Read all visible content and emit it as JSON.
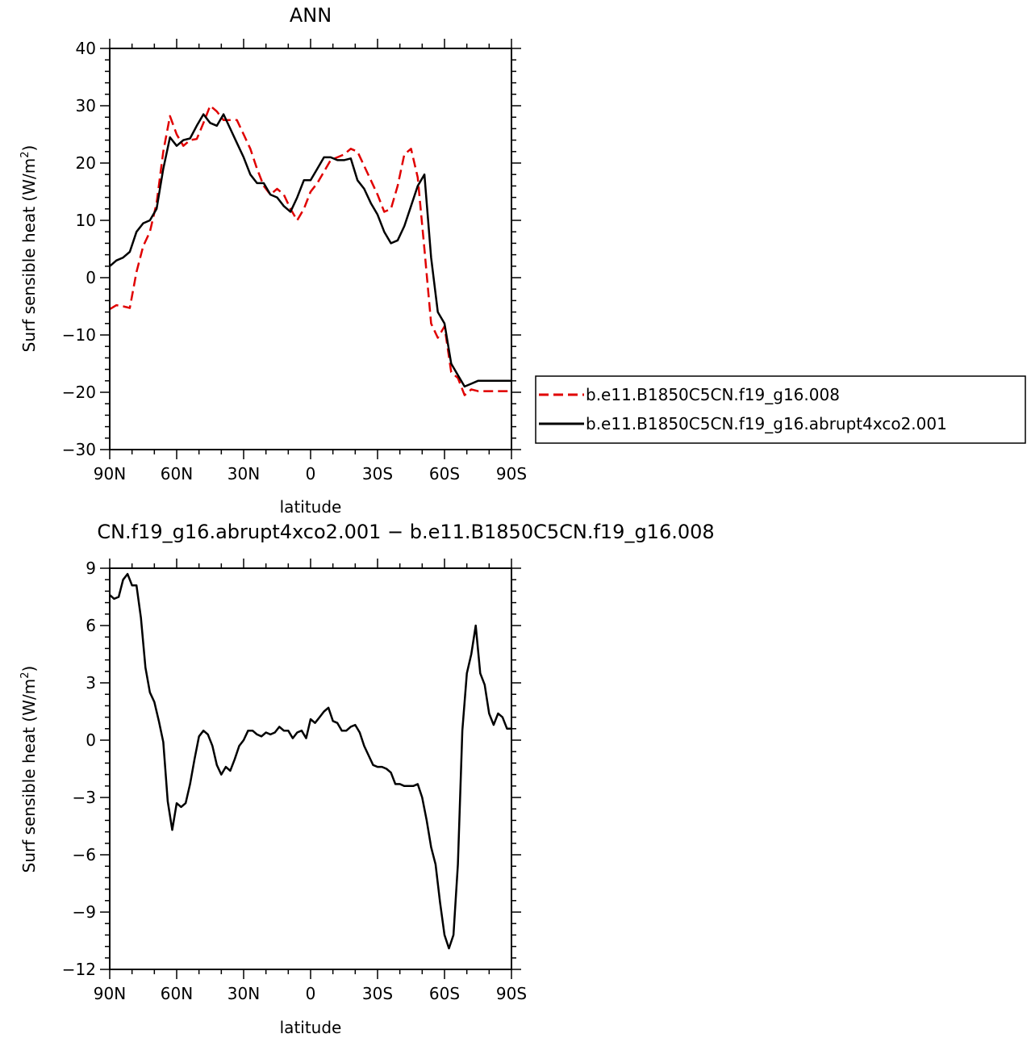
{
  "chart_data": [
    {
      "type": "line",
      "title": "ANN",
      "xlabel": "latitude",
      "ylabel": "Surf sensible heat (W/m",
      "ylabel_sup": "2",
      "ylabel_end": ")",
      "xlim": [
        90,
        -90
      ],
      "ylim": [
        -30,
        40
      ],
      "xticks": [
        90,
        60,
        30,
        0,
        -30,
        -60,
        -90
      ],
      "xtick_labels": [
        "90N",
        "60N",
        "30N",
        "0",
        "30S",
        "60S",
        "90S"
      ],
      "yticks": [
        -30,
        -20,
        -10,
        0,
        10,
        20,
        30,
        40
      ],
      "ytick_labels": [
        "−30",
        "−20",
        "−10",
        "0",
        "10",
        "20",
        "30",
        "40"
      ],
      "legend_position": "right",
      "series": [
        {
          "name": "b.e11.B1850C5CN.f19_g16.008",
          "color": "#e00000",
          "dash": "dashed",
          "x": [
            90,
            87,
            84,
            81,
            78,
            75,
            72,
            69,
            66,
            63,
            60,
            57,
            54,
            51,
            48,
            45,
            42,
            39,
            36,
            33,
            30,
            27,
            24,
            21,
            18,
            15,
            12,
            9,
            6,
            3,
            0,
            -3,
            -6,
            -9,
            -12,
            -15,
            -18,
            -21,
            -24,
            -27,
            -30,
            -33,
            -36,
            -39,
            -42,
            -45,
            -48,
            -51,
            -54,
            -57,
            -60,
            -63,
            -66,
            -69,
            -72,
            -75,
            -78,
            -81,
            -84,
            -87,
            -90
          ],
          "y": [
            -5.5,
            -4.8,
            -5,
            -5.3,
            1,
            5.5,
            8,
            13,
            22,
            28.2,
            25,
            23,
            24,
            24.2,
            27,
            30,
            29,
            27.5,
            27.5,
            27.5,
            25,
            22.5,
            19,
            16,
            14.5,
            15.5,
            14.5,
            12,
            10,
            12,
            15,
            16.5,
            18.5,
            20.5,
            21,
            21.5,
            22.5,
            22,
            19.5,
            17,
            14.5,
            11.5,
            12,
            16,
            21.5,
            22.5,
            17.5,
            5,
            -8,
            -10.5,
            -8.5,
            -16.5,
            -17.5,
            -20.5,
            -19.5,
            -19.8,
            -19.8,
            -19.8,
            -19.8,
            -19.8,
            -19.8
          ]
        },
        {
          "name": "b.e11.B1850C5CN.f19_g16.abrupt4xco2.001",
          "color": "#000000",
          "dash": "solid",
          "x": [
            90,
            87,
            84,
            81,
            78,
            75,
            72,
            69,
            66,
            63,
            60,
            57,
            54,
            51,
            48,
            45,
            42,
            39,
            36,
            33,
            30,
            27,
            24,
            21,
            18,
            15,
            12,
            9,
            6,
            3,
            0,
            -3,
            -6,
            -9,
            -12,
            -15,
            -18,
            -21,
            -24,
            -27,
            -30,
            -33,
            -36,
            -39,
            -42,
            -45,
            -48,
            -51,
            -54,
            -57,
            -60,
            -63,
            -66,
            -69,
            -72,
            -75,
            -78,
            -81,
            -84,
            -87,
            -90
          ],
          "y": [
            2,
            3,
            3.5,
            4.5,
            8,
            9.5,
            10,
            12,
            19,
            24.5,
            23,
            24,
            24.3,
            26.5,
            28.5,
            27,
            26.5,
            28.5,
            26,
            23.5,
            21,
            18,
            16.5,
            16.5,
            14.5,
            14,
            12.5,
            11.5,
            14,
            17,
            17,
            19,
            21,
            21,
            20.5,
            20.5,
            20.8,
            17,
            15.5,
            13,
            11,
            8,
            6,
            6.5,
            9,
            12.5,
            16,
            18,
            3.5,
            -6,
            -8,
            -15,
            -17,
            -19,
            -18.5,
            -18,
            -18,
            -18,
            -18,
            -18,
            -18
          ]
        }
      ]
    },
    {
      "type": "line",
      "title": "CN.f19_g16.abrupt4xco2.001 − b.e11.B1850C5CN.f19_g16.008",
      "xlabel": "latitude",
      "ylabel": "Surf sensible heat (W/m",
      "ylabel_sup": "2",
      "ylabel_end": ")",
      "xlim": [
        90,
        -90
      ],
      "ylim": [
        -12,
        9
      ],
      "xticks": [
        90,
        60,
        30,
        0,
        -30,
        -60,
        -90
      ],
      "xtick_labels": [
        "90N",
        "60N",
        "30N",
        "0",
        "30S",
        "60S",
        "90S"
      ],
      "yticks": [
        -12,
        -9,
        -6,
        -3,
        0,
        3,
        6,
        9
      ],
      "ytick_labels": [
        "−12",
        "−9",
        "−6",
        "−3",
        "0",
        "3",
        "6",
        "9"
      ],
      "series": [
        {
          "color": "#000000",
          "dash": "solid",
          "x": [
            90,
            88,
            86,
            84,
            82,
            80,
            78,
            76,
            74,
            72,
            70,
            68,
            66,
            64,
            62,
            60,
            58,
            56,
            54,
            52,
            50,
            48,
            46,
            44,
            42,
            40,
            38,
            36,
            34,
            32,
            30,
            28,
            26,
            24,
            22,
            20,
            18,
            16,
            14,
            12,
            10,
            8,
            6,
            4,
            2,
            0,
            -2,
            -4,
            -6,
            -8,
            -10,
            -12,
            -14,
            -16,
            -18,
            -20,
            -22,
            -24,
            -26,
            -28,
            -30,
            -32,
            -34,
            -36,
            -38,
            -40,
            -42,
            -44,
            -46,
            -48,
            -50,
            -52,
            -54,
            -56,
            -58,
            -60,
            -62,
            -64,
            -66,
            -68,
            -70,
            -72,
            -74,
            -76,
            -78,
            -80,
            -82,
            -84,
            -86,
            -88,
            -90
          ],
          "y": [
            7.6,
            7.4,
            7.5,
            8.4,
            8.7,
            8.1,
            8.1,
            6.4,
            3.8,
            2.5,
            2,
            1,
            -0.1,
            -3.2,
            -4.7,
            -3.3,
            -3.5,
            -3.3,
            -2.3,
            -1,
            0.2,
            0.5,
            0.3,
            -0.3,
            -1.3,
            -1.8,
            -1.4,
            -1.6,
            -1,
            -0.3,
            0,
            0.5,
            0.5,
            0.3,
            0.2,
            0.4,
            0.3,
            0.4,
            0.7,
            0.5,
            0.5,
            0.1,
            0.4,
            0.5,
            0.1,
            1.1,
            0.9,
            1.2,
            1.5,
            1.7,
            1,
            0.9,
            0.5,
            0.5,
            0.7,
            0.8,
            0.4,
            -0.3,
            -0.8,
            -1.3,
            -1.4,
            -1.4,
            -1.5,
            -1.7,
            -2.3,
            -2.3,
            -2.4,
            -2.4,
            -2.4,
            -2.3,
            -3,
            -4.2,
            -5.6,
            -6.5,
            -8.5,
            -10.2,
            -10.9,
            -10.2,
            -6.5,
            0.5,
            3.5,
            4.5,
            6,
            3.5,
            2.9,
            1.4,
            0.8,
            1.4,
            1.2,
            0.6,
            0.6
          ]
        }
      ]
    }
  ]
}
